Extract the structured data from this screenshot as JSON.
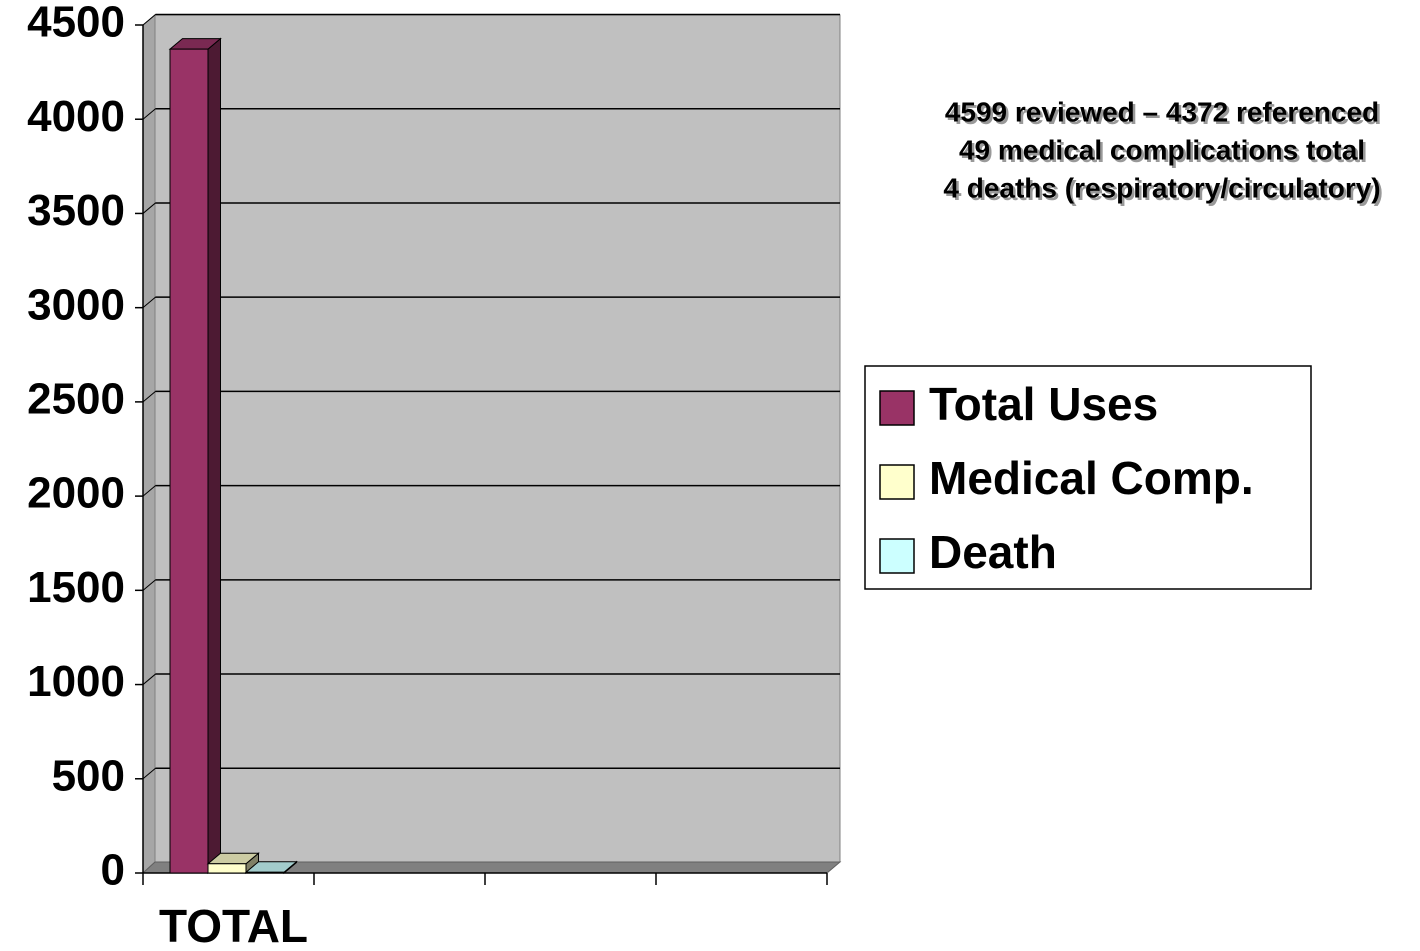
{
  "chart_data": {
    "type": "bar3d",
    "categories": [
      "TOTAL",
      null,
      null,
      null
    ],
    "series": [
      {
        "name": "Total Uses",
        "color": "#993366",
        "values": [
          4372,
          null,
          null,
          null
        ]
      },
      {
        "name": "Medical Comp.",
        "color": "#ffffcc",
        "values": [
          49,
          null,
          null,
          null
        ]
      },
      {
        "name": "Death",
        "color": "#ccffff",
        "values": [
          4,
          null,
          null,
          null
        ]
      }
    ],
    "ylim": [
      0,
      4500
    ],
    "yticks": [
      0,
      500,
      1000,
      1500,
      2000,
      2500,
      3000,
      3500,
      4000,
      4500
    ],
    "grid": true,
    "legend": "right",
    "annotation": [
      "4599 reviewed – 4372 referenced",
      "49 medical complications total",
      "4 deaths (respiratory/circulatory)"
    ]
  }
}
